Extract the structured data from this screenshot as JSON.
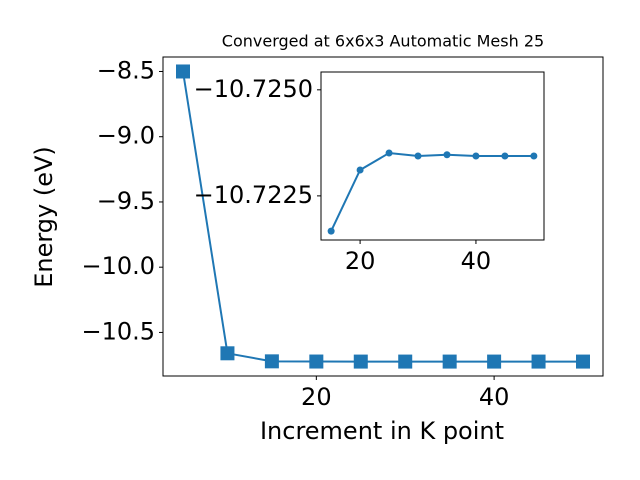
{
  "chart_data": [
    {
      "type": "line",
      "title": "Converged at 6x6x3 Automatic Mesh 25",
      "x_label": "Increment in K point",
      "y_label": "Energy (eV)",
      "x": [
        5,
        10,
        15,
        20,
        25,
        30,
        35,
        40,
        45,
        50
      ],
      "series": [
        {
          "color": "#1f77b4",
          "marker": "square",
          "values": [
            -8.5,
            -10.66,
            -10.72167,
            -10.72311,
            -10.72351,
            -10.72344,
            -10.72347,
            -10.72344,
            -10.72344,
            -10.72344
          ]
        }
      ],
      "xlim": [
        2.75,
        52.25
      ],
      "xticks": [
        20,
        40
      ],
      "ylim": [
        -10.834,
        -8.389
      ],
      "yticks": [
        {
          "value": -8.5,
          "label": "−8.5"
        },
        {
          "value": -9.0,
          "label": "−9.0"
        },
        {
          "value": -9.5,
          "label": "−9.5"
        },
        {
          "value": -10.0,
          "label": "−10.0"
        },
        {
          "value": -10.5,
          "label": "−10.5"
        }
      ]
    },
    {
      "type": "line",
      "x": [
        15,
        20,
        25,
        30,
        35,
        40,
        45,
        50
      ],
      "series": [
        {
          "color": "#1f77b4",
          "marker": "circle",
          "values": [
            -10.72167,
            -10.72311,
            -10.72351,
            -10.72344,
            -10.72347,
            -10.72344,
            -10.72344,
            -10.72344
          ]
        }
      ],
      "xlim": [
        13.25,
        51.75
      ],
      "xticks": [
        20,
        40
      ],
      "ylim": [
        -10.72146,
        -10.72542
      ],
      "yticks": [
        {
          "value": -10.725,
          "label": "−10.7250"
        },
        {
          "value": -10.7225,
          "label": "−10.7225"
        }
      ]
    }
  ]
}
